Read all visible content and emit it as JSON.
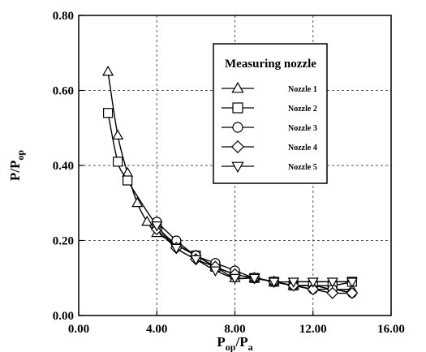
{
  "chart_data": {
    "type": "line",
    "xlabel": "P_op/P_a",
    "ylabel": "P/P_op",
    "xlabel_main": "P",
    "xlabel_sub": "op",
    "xlabel_rest": "/P",
    "xlabel_sub2": "a",
    "ylabel_main": "P/P",
    "ylabel_sub": "op",
    "xlim": [
      0,
      16
    ],
    "ylim": [
      0,
      0.8
    ],
    "x_ticks": [
      "0.00",
      "4.00",
      "8.00",
      "12.00",
      "16.00"
    ],
    "x_tick_values": [
      0,
      4,
      8,
      12,
      16
    ],
    "y_ticks": [
      "0.00",
      "0.20",
      "0.40",
      "0.60",
      "0.80"
    ],
    "y_tick_values": [
      0,
      0.2,
      0.4,
      0.6,
      0.8
    ],
    "grid": true,
    "legend_position": "top-right",
    "legend_title": "Measuring nozzle",
    "series": [
      {
        "name": "Nozzle 1",
        "marker": "triangle-up",
        "x": [
          1.5,
          2.0,
          2.5,
          3.0,
          3.5,
          4.0,
          5.0,
          6.0,
          7.0,
          8.0,
          9.0,
          10.0,
          11.0,
          12.0,
          13.0,
          14.0
        ],
        "y": [
          0.65,
          0.48,
          0.38,
          0.3,
          0.25,
          0.22,
          0.19,
          0.16,
          0.13,
          0.1,
          0.1,
          0.09,
          0.08,
          0.08,
          0.07,
          0.07
        ]
      },
      {
        "name": "Nozzle 2",
        "marker": "square",
        "x": [
          1.5,
          2.0,
          2.5,
          4.0,
          5.0,
          6.0,
          7.0,
          8.0,
          9.0,
          10.0,
          11.0,
          12.0,
          13.0,
          14.0
        ],
        "y": [
          0.54,
          0.41,
          0.36,
          0.24,
          0.19,
          0.16,
          0.13,
          0.11,
          0.1,
          0.09,
          0.08,
          0.08,
          0.08,
          0.09
        ]
      },
      {
        "name": "Nozzle 3",
        "marker": "circle",
        "x": [
          4.0,
          5.0,
          6.0,
          7.0,
          8.0,
          9.0,
          10.0,
          11.0,
          12.0,
          13.0,
          14.0
        ],
        "y": [
          0.25,
          0.2,
          0.16,
          0.14,
          0.12,
          0.1,
          0.09,
          0.08,
          0.07,
          0.07,
          0.06
        ]
      },
      {
        "name": "Nozzle 4",
        "marker": "diamond",
        "x": [
          4.0,
          5.0,
          6.0,
          7.0,
          8.0,
          9.0,
          10.0,
          11.0,
          12.0,
          13.0,
          14.0
        ],
        "y": [
          0.23,
          0.18,
          0.15,
          0.13,
          0.11,
          0.1,
          0.09,
          0.08,
          0.07,
          0.06,
          0.06
        ]
      },
      {
        "name": "Nozzle 5",
        "marker": "triangle-down",
        "x": [
          4.0,
          5.0,
          6.0,
          7.0,
          8.0,
          9.0,
          10.0,
          11.0,
          12.0,
          13.0,
          14.0
        ],
        "y": [
          0.24,
          0.18,
          0.15,
          0.12,
          0.1,
          0.1,
          0.09,
          0.09,
          0.09,
          0.09,
          0.09
        ]
      }
    ]
  }
}
